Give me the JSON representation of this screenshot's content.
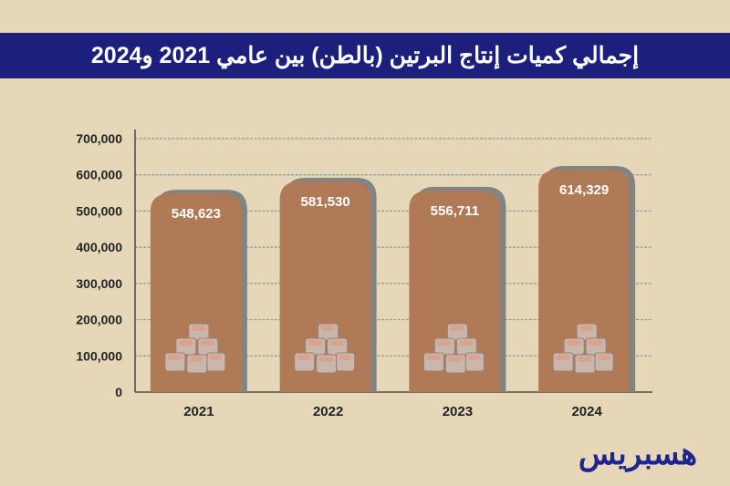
{
  "title": "إجمالي كميات إنتاج البرتين (بالطن) بين عامي 2021 و2024",
  "logo_text": "هسبريس",
  "colors": {
    "background": "#e7d7b9",
    "title_bar": "#1c1f7c",
    "bar": "#b07a57",
    "bar_shadow": "#7f8484",
    "logo": "#1f2490"
  },
  "chart_data": {
    "type": "bar",
    "title": "إجمالي كميات إنتاج البرتين (بالطن) بين عامي 2021 و2024",
    "categories": [
      "2021",
      "2022",
      "2023",
      "2024"
    ],
    "values": [
      548623,
      581530,
      556711,
      614329
    ],
    "value_labels": [
      "548,623",
      "581,530",
      "556,711",
      "614,329"
    ],
    "ylim": [
      0,
      700000
    ],
    "yticks": [
      0,
      100000,
      200000,
      300000,
      400000,
      500000,
      600000,
      700000
    ],
    "ytick_labels": [
      "0",
      "100,000",
      "200,000",
      "300,000",
      "400,000",
      "500,000",
      "600,000",
      "700,000"
    ],
    "xlabel": "",
    "ylabel": "",
    "grid": true
  }
}
